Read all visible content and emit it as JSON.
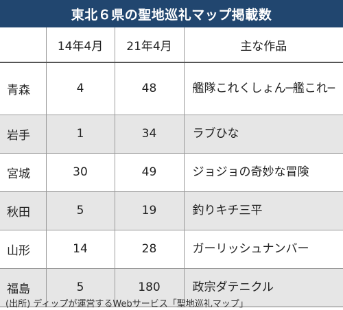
{
  "title": "東北６県の聖地巡礼マップ掲載数",
  "table": {
    "headers": [
      "",
      "14年4月",
      "21年4月",
      "主な作品"
    ],
    "rows": [
      {
        "pref": "青森",
        "y14": "4",
        "y21": "48",
        "work": "艦隊これくしょん─艦これ─"
      },
      {
        "pref": "岩手",
        "y14": "1",
        "y21": "34",
        "work": "ラブひな"
      },
      {
        "pref": "宮城",
        "y14": "30",
        "y21": "49",
        "work": "ジョジョの奇妙な冒険"
      },
      {
        "pref": "秋田",
        "y14": "5",
        "y21": "19",
        "work": "釣りキチ三平"
      },
      {
        "pref": "山形",
        "y14": "14",
        "y21": "28",
        "work": "ガーリッシュナンバー"
      },
      {
        "pref": "福島",
        "y14": "5",
        "y21": "180",
        "work": "政宗ダテニクル"
      }
    ]
  },
  "source": "(出所) ディップが運営するWebサービス「聖地巡礼マップ」"
}
